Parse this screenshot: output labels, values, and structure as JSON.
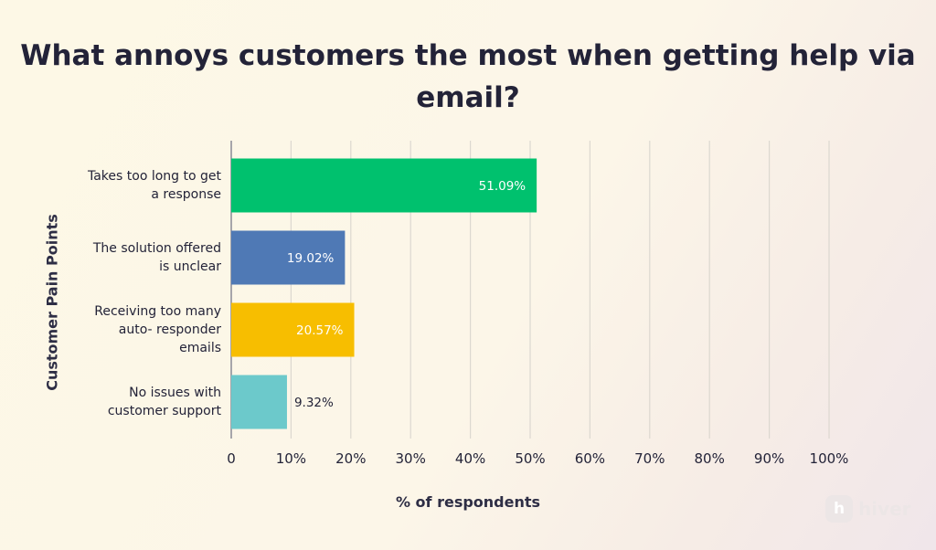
{
  "chart_data": {
    "type": "bar",
    "orientation": "horizontal",
    "title": "What annoys customers the most when getting help via email?",
    "xlabel": "% of respondents",
    "ylabel": "Customer Pain Points",
    "xlim": [
      0,
      100
    ],
    "x_ticks": [
      "0",
      "10%",
      "20%",
      "30%",
      "40%",
      "50%",
      "60%",
      "70%",
      "80%",
      "90%",
      "100%"
    ],
    "grid": true,
    "categories": [
      "Takes too long to get a response",
      "The solution offered is unclear",
      "Receiving too many auto- responder emails",
      "No issues with customer support"
    ],
    "values": [
      51.09,
      19.02,
      20.57,
      9.32
    ],
    "data_labels": [
      "51.09%",
      "19.02%",
      "20.57%",
      "9.32%"
    ],
    "colors": [
      "#00c16e",
      "#4f79b5",
      "#f7be00",
      "#6cc9cb"
    ]
  },
  "category_label_lines": [
    [
      "Takes too long to get",
      "a response"
    ],
    [
      "The solution offered",
      "is unclear"
    ],
    [
      "Receiving too many",
      "auto- responder",
      "emails"
    ],
    [
      "No issues with",
      "customer support"
    ]
  ],
  "branding": {
    "logo_letter": "h",
    "logo_text": "hiver"
  }
}
